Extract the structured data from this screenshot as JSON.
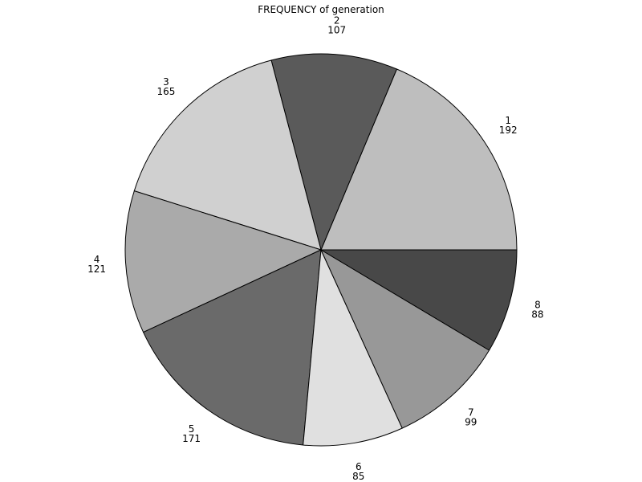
{
  "chart_data": {
    "type": "pie",
    "title": "FREQUENCY of generation",
    "categories": [
      "1",
      "2",
      "3",
      "4",
      "5",
      "6",
      "7",
      "8"
    ],
    "values": [
      192,
      107,
      165,
      121,
      171,
      85,
      99,
      88
    ],
    "colors": [
      "#bebebe",
      "#5a5a5a",
      "#d0d0d0",
      "#aaaaaa",
      "#6a6a6a",
      "#e0e0e0",
      "#989898",
      "#484848"
    ],
    "start_angle_deg": 0,
    "direction": "counterclockwise",
    "legend": "none"
  }
}
